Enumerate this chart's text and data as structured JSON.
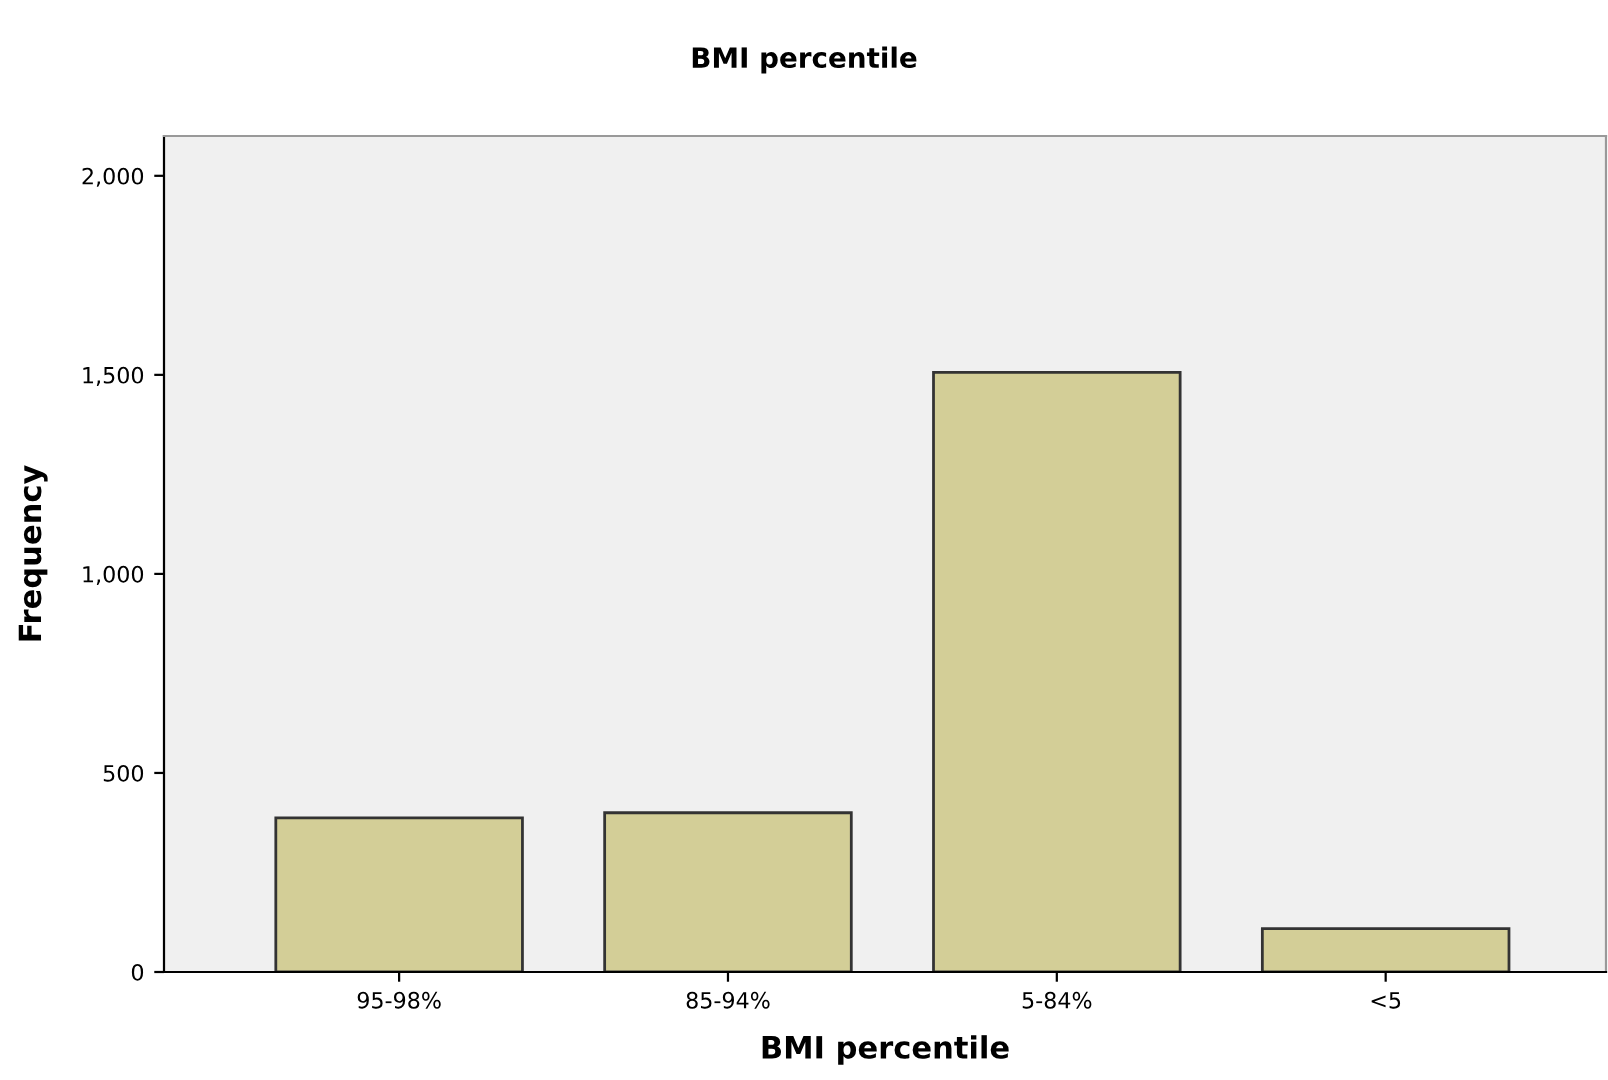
{
  "chart_data": {
    "type": "bar",
    "title": "BMI percentile",
    "xlabel": "BMI percentile",
    "ylabel": "Frequency",
    "categories": [
      "95-98%",
      "85-94%",
      "5-84%",
      "<5"
    ],
    "values": [
      387,
      400,
      1506,
      109
    ],
    "color": "#d3ce97",
    "ylim": [
      0,
      2100
    ],
    "yticks": [
      0,
      {
        "value": 500,
        "label": "500"
      },
      {
        "value": 1000,
        "label": "1,000"
      },
      {
        "value": 1500,
        "label": "1,500"
      },
      {
        "value": 2000,
        "label": "2,000"
      }
    ],
    "grid": false
  }
}
